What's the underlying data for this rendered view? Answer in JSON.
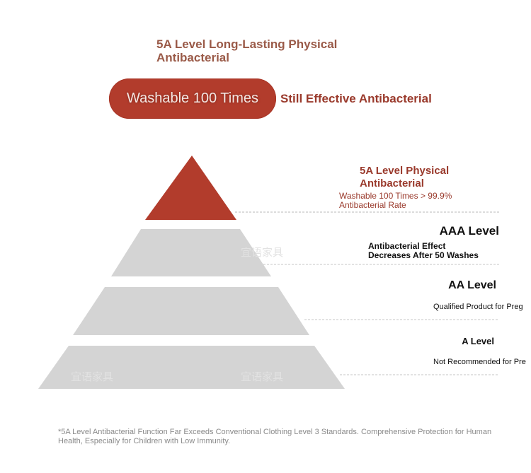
{
  "headline": "5A Level Long-Lasting Physical Antibacterial",
  "pill": {
    "label": "Washable 100 Times",
    "side_text": "Still Effective Antibacterial"
  },
  "levels": {
    "top": {
      "title": "5A Level Physical Antibacterial",
      "description": "Washable 100 Times > 99.9% Antibacterial Rate",
      "color": "#b23c2c"
    },
    "aaa": {
      "title": "AAA Level",
      "description_line1": "Antibacterial Effect",
      "description_line2": "Decreases After 50 Washes"
    },
    "aa": {
      "title": "AA Level",
      "description": "Qualified Product for Preg"
    },
    "a": {
      "title": "A Level",
      "description": "Not Recommended for Pre"
    },
    "tier_color": "#d4d4d4"
  },
  "watermark": "宜语家具",
  "footnote": "*5A Level Antibacterial Function Far Exceeds Conventional Clothing Level 3 Standards. Comprehensive Protection for Human Health, Especially for Children with Low Immunity."
}
